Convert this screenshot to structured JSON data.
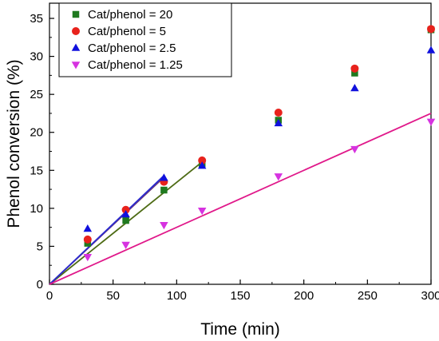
{
  "chart_data": {
    "type": "scatter",
    "title": "",
    "xlabel": "Time (min)",
    "ylabel": "Phenol conversion (%)",
    "xlim": [
      0,
      300
    ],
    "ylim": [
      0,
      37
    ],
    "xticks": [
      0,
      50,
      100,
      150,
      200,
      250,
      300
    ],
    "yticks": [
      0,
      5,
      10,
      15,
      20,
      25,
      30,
      35
    ],
    "grid": false,
    "legend_position": "top-left",
    "series": [
      {
        "name": "Cat/phenol = 20",
        "marker": "square",
        "color": "#1f7a1f",
        "x": [
          30,
          60,
          90,
          120,
          180,
          240,
          300
        ],
        "y": [
          5.4,
          8.4,
          12.4,
          15.9,
          21.6,
          27.8,
          33.5
        ],
        "fit": {
          "x": [
            0,
            120
          ],
          "y": [
            0,
            16.1
          ],
          "color": "#4d6b14"
        }
      },
      {
        "name": "Cat/phenol = 5",
        "marker": "circle",
        "color": "#e8221c",
        "x": [
          30,
          60,
          90,
          120,
          180,
          240,
          300
        ],
        "y": [
          5.9,
          9.8,
          13.5,
          16.3,
          22.6,
          28.4,
          33.6
        ],
        "fit": {
          "x": [
            0,
            90
          ],
          "y": [
            0,
            14.1
          ],
          "color": "#6b3a7a"
        }
      },
      {
        "name": "Cat/phenol = 2.5",
        "marker": "triangle-up",
        "color": "#1010dd",
        "x": [
          30,
          60,
          90,
          120,
          180,
          240,
          300
        ],
        "y": [
          7.3,
          9.2,
          14.0,
          15.6,
          21.2,
          25.8,
          30.8
        ],
        "fit": {
          "x": [
            0,
            90
          ],
          "y": [
            0,
            14.3
          ],
          "color": "#2a2ad0"
        }
      },
      {
        "name": "Cat/phenol = 1.25",
        "marker": "triangle-down",
        "color": "#d633e0",
        "x": [
          30,
          60,
          90,
          120,
          180,
          240,
          300
        ],
        "y": [
          3.6,
          5.2,
          7.8,
          9.7,
          14.2,
          17.8,
          21.4
        ],
        "fit": {
          "x": [
            0,
            300
          ],
          "y": [
            0,
            22.5
          ],
          "color": "#e0188a"
        }
      }
    ]
  }
}
